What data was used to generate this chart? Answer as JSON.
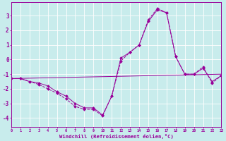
{
  "xlabel": "Windchill (Refroidissement éolien,°C)",
  "bg_color": "#c8ecec",
  "line_color": "#990099",
  "grid_color": "#ffffff",
  "hours": [
    0,
    1,
    2,
    3,
    4,
    5,
    6,
    7,
    8,
    9,
    10,
    11,
    12,
    13,
    14,
    15,
    16,
    17,
    18,
    19,
    20,
    21,
    22,
    23
  ],
  "temp": [
    -1.3,
    -1.3,
    -1.5,
    -1.6,
    -1.8,
    -2.2,
    -2.5,
    -3.0,
    -3.3,
    -3.3,
    -3.8,
    -2.5,
    0.1,
    0.5,
    1.0,
    2.6,
    3.4,
    3.2,
    0.2,
    -1.0,
    -1.0,
    -0.6,
    -1.5,
    -1.1
  ],
  "windchill": [
    -1.3,
    -1.3,
    -1.5,
    -1.7,
    -2.0,
    -2.3,
    -2.7,
    -3.2,
    -3.4,
    -3.4,
    -3.85,
    -2.5,
    -0.1,
    0.5,
    1.0,
    2.7,
    3.5,
    3.2,
    0.2,
    -1.0,
    -1.0,
    -0.5,
    -1.6,
    -1.1
  ],
  "trend_x": [
    0,
    23
  ],
  "trend_y": [
    -1.3,
    -1.0
  ],
  "yticks": [
    -4,
    -3,
    -2,
    -1,
    0,
    1,
    2,
    3
  ],
  "ylim": [
    -4.6,
    3.9
  ],
  "xlim": [
    0,
    23
  ]
}
